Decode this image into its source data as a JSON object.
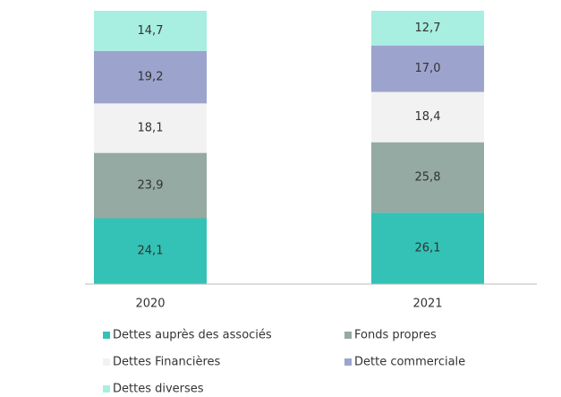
{
  "chart_data": {
    "type": "stacked_bar",
    "categories": [
      "2020",
      "2021"
    ],
    "series": [
      {
        "name": "Dettes auprès des associés",
        "color": "#33c2b5",
        "values": [
          24.1,
          26.1
        ],
        "value_labels": [
          "24,1",
          "26,1"
        ]
      },
      {
        "name": "Fonds propres",
        "color": "#95aaa2",
        "values": [
          23.9,
          25.8
        ],
        "value_labels": [
          "23,9",
          "25,8"
        ]
      },
      {
        "name": "Dettes Financières",
        "color": "#f2f2f2",
        "values": [
          18.1,
          18.4
        ],
        "value_labels": [
          "18,1",
          "18,4"
        ]
      },
      {
        "name": "Dette commerciale",
        "color": "#9ca4cd",
        "values": [
          19.2,
          17.0
        ],
        "value_labels": [
          "19,2",
          "17,0"
        ]
      },
      {
        "name": "Dettes diverses",
        "color": "#a8eee1",
        "values": [
          14.7,
          12.7
        ],
        "value_labels": [
          "14,7",
          "12,7"
        ]
      }
    ]
  }
}
